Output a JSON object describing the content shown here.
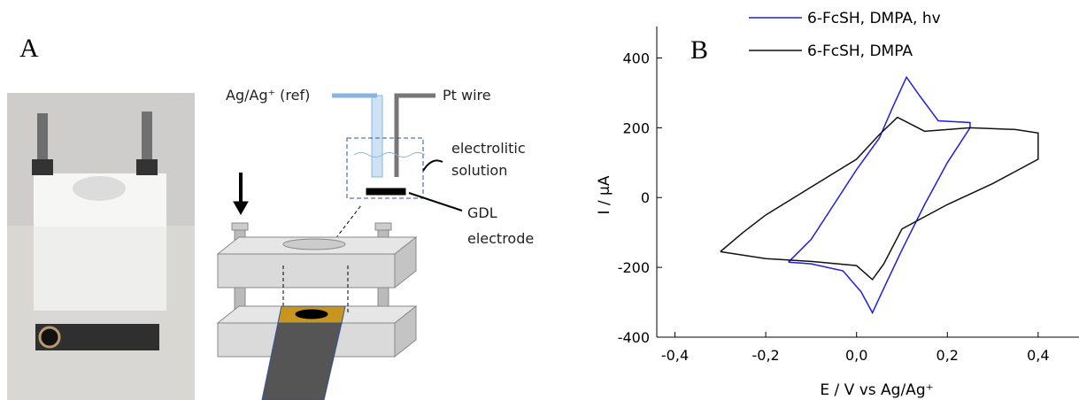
{
  "panel_labels": {
    "a": "A",
    "b": "B"
  },
  "diagram": {
    "ref": "Ag/Ag⁺ (ref)",
    "pt": "Pt wire",
    "solution": [
      "electrolitic",
      "solution"
    ],
    "gdl": [
      "GDL",
      "electrode"
    ]
  },
  "chart_data": {
    "type": "line",
    "xlabel": "E / V vs Ag/Ag⁺",
    "ylabel": "I / μA",
    "xlim": [
      -0.44,
      0.49
    ],
    "ylim": [
      -400,
      490
    ],
    "xticks": [
      {
        "value": -0.4,
        "label": "-0,4"
      },
      {
        "value": -0.2,
        "label": "-0,2"
      },
      {
        "value": 0,
        "label": "0,0"
      },
      {
        "value": 0.2,
        "label": "0,2"
      },
      {
        "value": 0.4,
        "label": "0,4"
      }
    ],
    "yticks": [
      -400,
      -200,
      0,
      200,
      400
    ],
    "series": [
      {
        "name": "6-FcSH, DMPA, hv",
        "color": "#1f1fe0",
        "x": [
          -0.15,
          -0.1,
          -0.05,
          0,
          0.05,
          0.08,
          0.11,
          0.14,
          0.18,
          0.25,
          0.25,
          0.2,
          0.15,
          0.1,
          0.06,
          0.035,
          0.01,
          -0.03,
          -0.1,
          -0.15
        ],
        "values": [
          -185,
          -120,
          -20,
          80,
          170,
          260,
          345,
          290,
          220,
          215,
          200,
          100,
          -20,
          -150,
          -260,
          -330,
          -270,
          -210,
          -190,
          -185
        ]
      },
      {
        "name": "6-FcSH, DMPA",
        "color": "#111111",
        "x": [
          -0.3,
          -0.25,
          -0.2,
          -0.1,
          0,
          0.05,
          0.09,
          0.15,
          0.25,
          0.35,
          0.4,
          0.4,
          0.3,
          0.2,
          0.1,
          0.06,
          0.035,
          0,
          -0.1,
          -0.2,
          -0.3
        ],
        "values": [
          -155,
          -100,
          -50,
          30,
          110,
          180,
          230,
          190,
          200,
          195,
          185,
          110,
          40,
          -20,
          -90,
          -190,
          -235,
          -195,
          -183,
          -175,
          -155
        ]
      }
    ]
  }
}
